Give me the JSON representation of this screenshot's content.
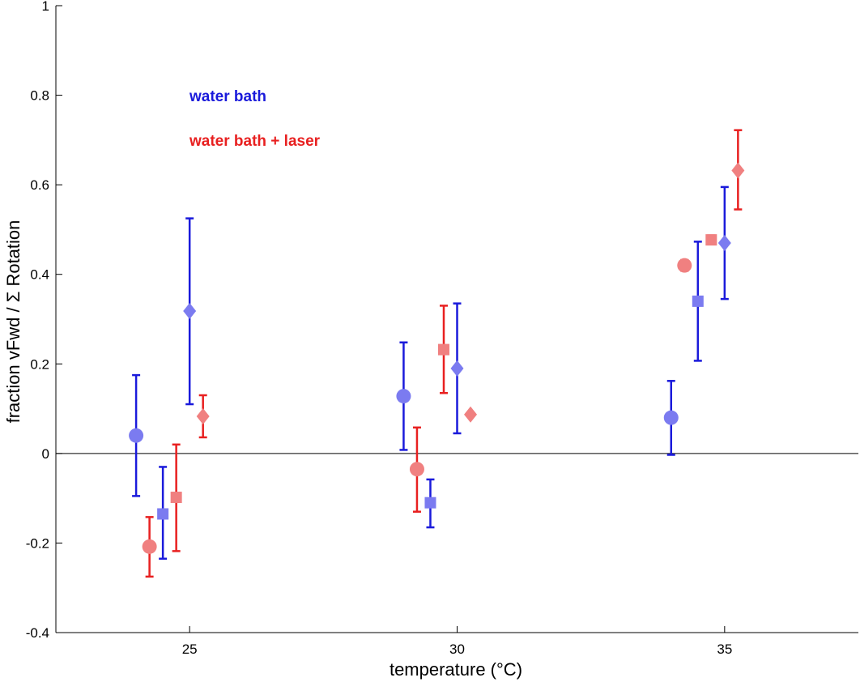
{
  "chart_data": {
    "type": "scatter",
    "title": "",
    "xlabel": "temperature (°C)",
    "ylabel": "fraction vFwd / Σ Rotation",
    "xlim": [
      22.5,
      37.5
    ],
    "ylim": [
      -0.4,
      1.0
    ],
    "xticks": [
      25,
      30,
      35
    ],
    "yticks": [
      -0.4,
      -0.2,
      0,
      0.2,
      0.4,
      0.6,
      0.8,
      1
    ],
    "ytick_labels": [
      "-0.4",
      "-0.2",
      "0",
      "0.2",
      "0.4",
      "0.6",
      "0.8",
      "1"
    ],
    "grid": false,
    "zero_line": true,
    "legend": [
      {
        "label": "water bath",
        "color": "#1a1adb"
      },
      {
        "label": "water bath + laser",
        "color": "#e82020"
      }
    ],
    "series": [
      {
        "name": "water bath",
        "error_color": "#1a1adb",
        "marker_color": "#7b7bf0",
        "points": [
          {
            "x": 24.0,
            "y": 0.04,
            "yerr_low": -0.095,
            "yerr_high": 0.175,
            "marker": "circle"
          },
          {
            "x": 24.5,
            "y": -0.135,
            "yerr_low": -0.235,
            "yerr_high": -0.03,
            "marker": "square"
          },
          {
            "x": 25.0,
            "y": 0.318,
            "yerr_low": 0.11,
            "yerr_high": 0.525,
            "marker": "diamond"
          },
          {
            "x": 29.0,
            "y": 0.128,
            "yerr_low": 0.008,
            "yerr_high": 0.248,
            "marker": "circle"
          },
          {
            "x": 29.5,
            "y": -0.11,
            "yerr_low": -0.165,
            "yerr_high": -0.058,
            "marker": "square"
          },
          {
            "x": 30.0,
            "y": 0.19,
            "yerr_low": 0.045,
            "yerr_high": 0.335,
            "marker": "diamond"
          },
          {
            "x": 34.0,
            "y": 0.08,
            "yerr_low": -0.003,
            "yerr_high": 0.162,
            "marker": "circle"
          },
          {
            "x": 34.5,
            "y": 0.34,
            "yerr_low": 0.207,
            "yerr_high": 0.473,
            "marker": "square"
          },
          {
            "x": 35.0,
            "y": 0.47,
            "yerr_low": 0.345,
            "yerr_high": 0.595,
            "marker": "diamond"
          }
        ]
      },
      {
        "name": "water bath + laser",
        "error_color": "#e82020",
        "marker_color": "#f08080",
        "points": [
          {
            "x": 24.25,
            "y": -0.208,
            "yerr_low": -0.275,
            "yerr_high": -0.142,
            "marker": "circle"
          },
          {
            "x": 24.75,
            "y": -0.098,
            "yerr_low": -0.218,
            "yerr_high": 0.02,
            "marker": "square"
          },
          {
            "x": 25.25,
            "y": 0.083,
            "yerr_low": 0.036,
            "yerr_high": 0.13,
            "marker": "diamond"
          },
          {
            "x": 29.25,
            "y": -0.035,
            "yerr_low": -0.13,
            "yerr_high": 0.058,
            "marker": "circle"
          },
          {
            "x": 29.75,
            "y": 0.232,
            "yerr_low": 0.135,
            "yerr_high": 0.33,
            "marker": "square"
          },
          {
            "x": 30.25,
            "y": 0.087,
            "yerr_low": 0.087,
            "yerr_high": 0.087,
            "marker": "diamond"
          },
          {
            "x": 34.25,
            "y": 0.42,
            "yerr_low": 0.408,
            "yerr_high": 0.432,
            "marker": "circle"
          },
          {
            "x": 34.75,
            "y": 0.477,
            "yerr_low": 0.467,
            "yerr_high": 0.487,
            "marker": "square"
          },
          {
            "x": 35.25,
            "y": 0.632,
            "yerr_low": 0.545,
            "yerr_high": 0.722,
            "marker": "diamond"
          }
        ]
      }
    ]
  }
}
